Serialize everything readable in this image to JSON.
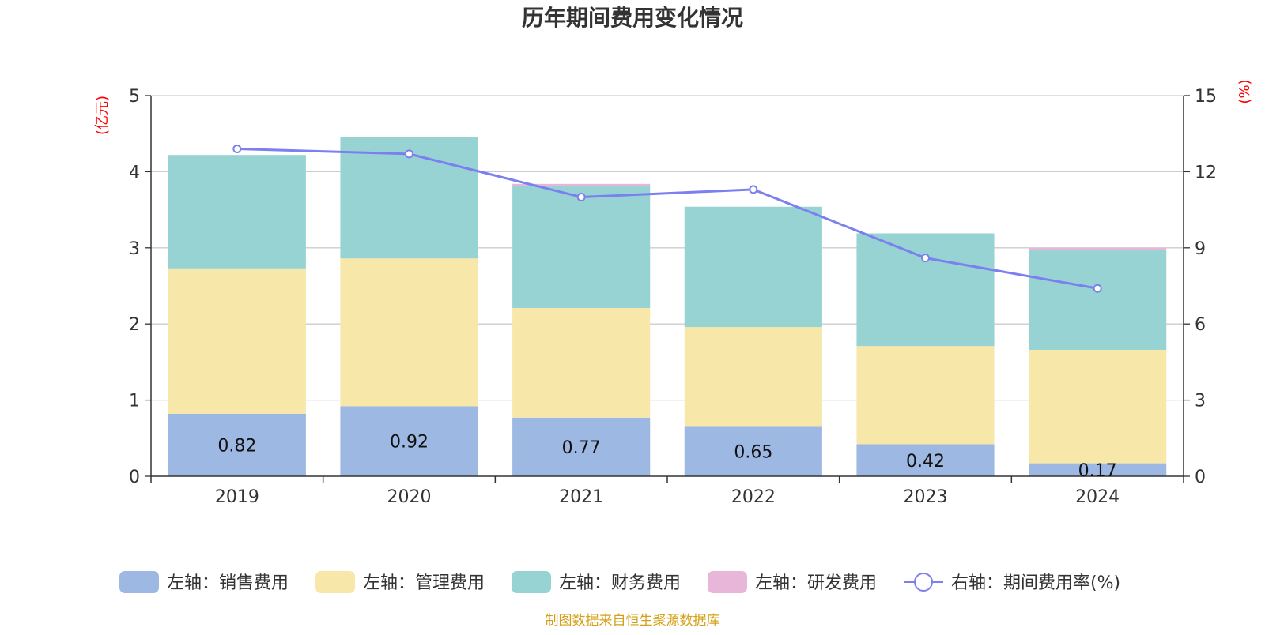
{
  "chart_data": {
    "type": "bar",
    "stacked": true,
    "title": "历年期间费用变化情况",
    "categories": [
      "2019",
      "2020",
      "2021",
      "2022",
      "2023",
      "2024"
    ],
    "series": [
      {
        "name": "左轴：销售费用",
        "axis": "left",
        "color": "#9db8e2",
        "values": [
          0.82,
          0.92,
          0.77,
          0.65,
          0.42,
          0.17
        ],
        "labels": [
          "0.82",
          "0.92",
          "0.77",
          "0.65",
          "0.42",
          "0.17"
        ]
      },
      {
        "name": "左轴：管理费用",
        "axis": "left",
        "color": "#f7e7a9",
        "values": [
          1.91,
          1.94,
          1.44,
          1.31,
          1.29,
          1.49
        ]
      },
      {
        "name": "左轴：财务费用",
        "axis": "left",
        "color": "#97d3d3",
        "values": [
          1.49,
          1.6,
          1.6,
          1.58,
          1.48,
          1.31
        ]
      },
      {
        "name": "左轴：研发费用",
        "axis": "left",
        "color": "#e8b6d8",
        "values": [
          0,
          0,
          0.03,
          0,
          0,
          0.03
        ]
      }
    ],
    "line_series": {
      "name": "右轴：期间费用率(%)",
      "axis": "right",
      "color": "#7b7ff0",
      "values": [
        12.9,
        12.7,
        11.0,
        11.3,
        8.6,
        7.4
      ]
    },
    "left_axis": {
      "unit": "(亿元)",
      "range": [
        0,
        5
      ],
      "ticks": [
        "0",
        "1",
        "2",
        "3",
        "4",
        "5"
      ]
    },
    "right_axis": {
      "unit": "(%)",
      "range": [
        0,
        15
      ],
      "ticks": [
        "0",
        "3",
        "6",
        "9",
        "12",
        "15"
      ]
    },
    "grid": true,
    "legend_position": "bottom",
    "source": "制图数据来自恒生聚源数据库"
  }
}
